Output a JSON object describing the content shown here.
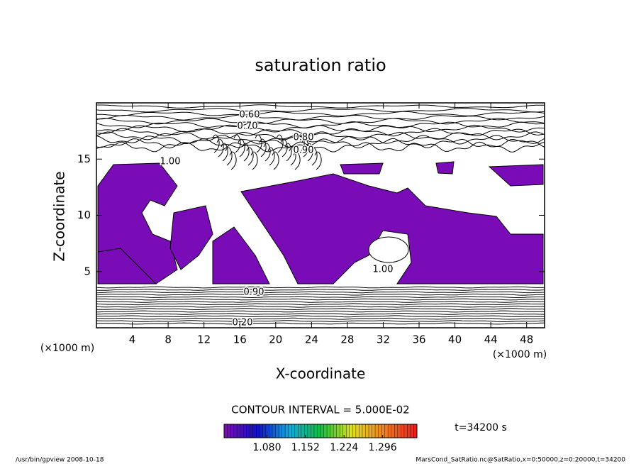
{
  "chart_data": {
    "type": "contour",
    "title": "saturation ratio",
    "x_label": "X-coordinate",
    "y_label": "Z-coordinate",
    "x_unit": "(×1000 m)",
    "y_unit": "(×1000 m)",
    "xlim": [
      0,
      50
    ],
    "xticks": [
      4,
      8,
      12,
      16,
      20,
      24,
      28,
      32,
      36,
      40,
      44,
      48
    ],
    "ylim": [
      0,
      20
    ],
    "yticks": [
      5,
      10,
      15
    ],
    "fill_color": "#7a0cb8",
    "contour_labels": [
      "0.60",
      "0.70",
      "0.80",
      "0.90",
      "1.00",
      "1.00",
      "0.90",
      "0.20"
    ],
    "contour_interval": "CONTOUR INTERVAL = 5.000E-02",
    "time_label": "t=34200 s",
    "colorbar": {
      "lim": [
        1.0,
        1.36
      ],
      "ticks": [
        {
          "value": 1.08,
          "label": "1.080"
        },
        {
          "value": 1.152,
          "label": "1.152"
        },
        {
          "value": 1.224,
          "label": "1.224"
        },
        {
          "value": 1.296,
          "label": "1.296"
        }
      ],
      "colors": [
        "#7a0cb8",
        "#1010c8",
        "#10a8e0",
        "#10c040",
        "#e0e020",
        "#f08020",
        "#e82020"
      ]
    },
    "footer_left": "/usr/bin/gpview  2008-10-18",
    "footer_right": "MarsCond_SatRatio.nc@SatRatio,x=0:50000,z=0:20000,t=34200"
  }
}
